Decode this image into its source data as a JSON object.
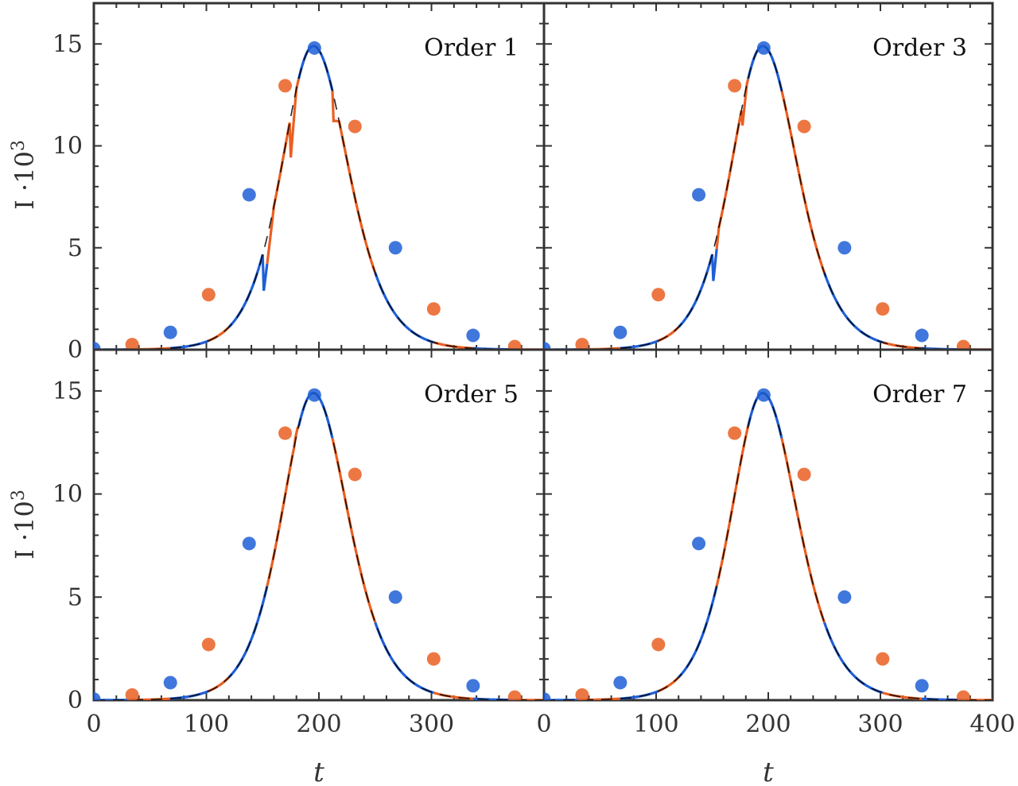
{
  "chart_data": {
    "type": "line",
    "layout": "2x2 small multiples",
    "xlabel": "t",
    "ylabel": "I ·10",
    "ylabel_superscript": "3",
    "xlim": [
      0,
      400
    ],
    "ylim": [
      0,
      17
    ],
    "x_ticks": [
      "0",
      "100",
      "200",
      "300",
      "400"
    ],
    "y_ticks": [
      "0",
      "5",
      "10",
      "15"
    ],
    "colors": {
      "blue": "#1f5fd6",
      "orange": "#ea5f22",
      "reference": "#000000"
    },
    "panels": [
      {
        "label": "Order 1",
        "points_blue": [
          [
            0,
            0.05
          ],
          [
            68,
            0.85
          ],
          [
            138,
            7.6
          ],
          [
            196,
            14.8
          ],
          [
            268,
            5.0
          ],
          [
            337,
            0.7
          ]
        ],
        "points_orange": [
          [
            34,
            0.25
          ],
          [
            102,
            2.7
          ],
          [
            170,
            12.95
          ],
          [
            232,
            10.95
          ],
          [
            302,
            2.0
          ],
          [
            374,
            0.15
          ]
        ],
        "reference_curve": "dashed black gaussian, peak 14.9 at t=195"
      },
      {
        "label": "Order 3",
        "points_blue": [
          [
            0,
            0.05
          ],
          [
            68,
            0.85
          ],
          [
            138,
            7.6
          ],
          [
            196,
            14.8
          ],
          [
            268,
            5.0
          ],
          [
            337,
            0.7
          ]
        ],
        "points_orange": [
          [
            34,
            0.25
          ],
          [
            102,
            2.7
          ],
          [
            170,
            12.95
          ],
          [
            232,
            10.95
          ],
          [
            302,
            2.0
          ],
          [
            374,
            0.15
          ]
        ],
        "reference_curve": "dashed black gaussian, peak 14.9 at t=195"
      },
      {
        "label": "Order 5",
        "points_blue": [
          [
            0,
            0.05
          ],
          [
            68,
            0.85
          ],
          [
            138,
            7.6
          ],
          [
            196,
            14.8
          ],
          [
            268,
            5.0
          ],
          [
            337,
            0.7
          ]
        ],
        "points_orange": [
          [
            34,
            0.25
          ],
          [
            102,
            2.7
          ],
          [
            170,
            12.95
          ],
          [
            232,
            10.95
          ],
          [
            302,
            2.0
          ],
          [
            374,
            0.15
          ]
        ],
        "reference_curve": "dashed black gaussian, peak 14.9 at t=195"
      },
      {
        "label": "Order 7",
        "points_blue": [
          [
            0,
            0.05
          ],
          [
            68,
            0.85
          ],
          [
            138,
            7.6
          ],
          [
            196,
            14.8
          ],
          [
            268,
            5.0
          ],
          [
            337,
            0.7
          ]
        ],
        "points_orange": [
          [
            34,
            0.25
          ],
          [
            102,
            2.7
          ],
          [
            170,
            12.95
          ],
          [
            232,
            10.95
          ],
          [
            302,
            2.0
          ],
          [
            374,
            0.15
          ]
        ],
        "reference_curve": "dashed black gaussian, peak 14.9 at t=195"
      }
    ]
  }
}
